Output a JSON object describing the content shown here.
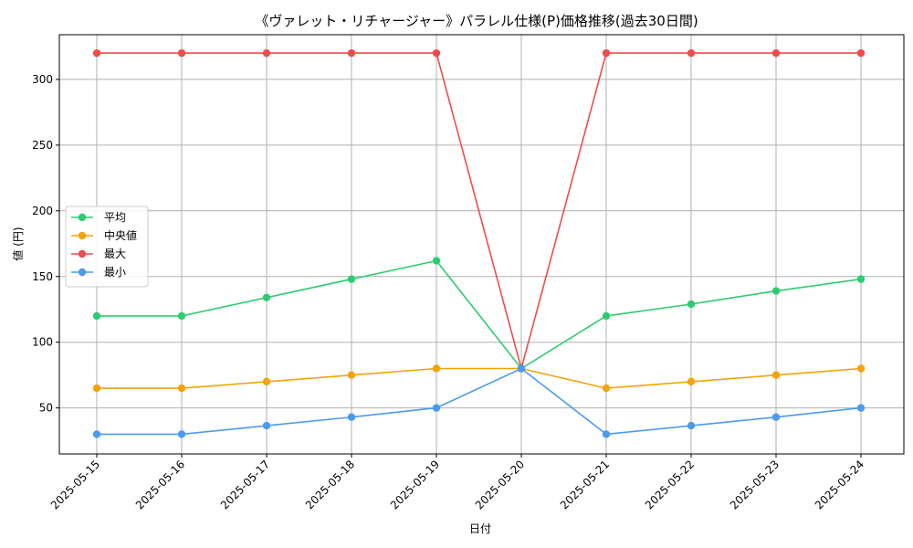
{
  "chart_data": {
    "type": "line",
    "title": "《ヴァレット・リチャージャー》パラレル仕様(P)価格推移(過去30日間)",
    "xlabel": "日付",
    "ylabel": "値 (円)",
    "categories": [
      "2025-05-15",
      "2025-05-16",
      "2025-05-17",
      "2025-05-18",
      "2025-05-19",
      "2025-05-20",
      "2025-05-21",
      "2025-05-22",
      "2025-05-23",
      "2025-05-24"
    ],
    "ylim": [
      15,
      334
    ],
    "yticks": [
      50,
      100,
      150,
      200,
      250,
      300
    ],
    "grid": true,
    "legend_position": "center-left",
    "series": [
      {
        "name": "平均",
        "color": "#2ecc71",
        "values": [
          120,
          120,
          134,
          148,
          162,
          80,
          120,
          129,
          139,
          148
        ]
      },
      {
        "name": "中央値",
        "color": "#f5a30a",
        "values": [
          65,
          65,
          70,
          75,
          80,
          80,
          65,
          70,
          75,
          80
        ]
      },
      {
        "name": "最大",
        "color": "#f04c4c",
        "values": [
          320,
          320,
          320,
          320,
          320,
          80,
          320,
          320,
          320,
          320
        ]
      },
      {
        "name": "最小",
        "color": "#4a9af0",
        "values": [
          30,
          30,
          36.5,
          43,
          50,
          80,
          30,
          36.5,
          43,
          50
        ]
      }
    ]
  }
}
